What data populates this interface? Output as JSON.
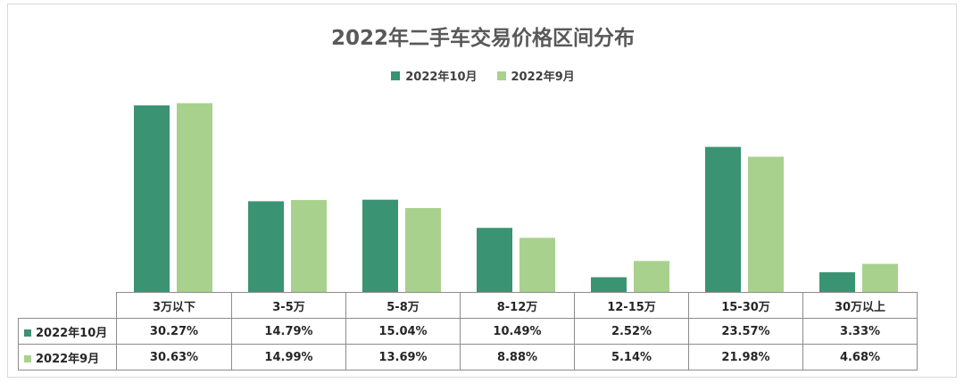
{
  "chart_data": {
    "type": "bar",
    "title": "2022年二手车交易价格区间分布",
    "categories": [
      "3万以下",
      "3-5万",
      "5-8万",
      "8-12万",
      "12-15万",
      "15-30万",
      "30万以上"
    ],
    "series": [
      {
        "name": "2022年10月",
        "color": "#3a9372",
        "values": [
          30.27,
          14.79,
          15.04,
          10.49,
          2.52,
          23.57,
          3.33
        ],
        "labels": [
          "30.27%",
          "14.79%",
          "15.04%",
          "10.49%",
          "2.52%",
          "23.57%",
          "3.33%"
        ]
      },
      {
        "name": "2022年9月",
        "color": "#a9d18e",
        "values": [
          30.63,
          14.99,
          13.69,
          8.88,
          5.14,
          21.98,
          4.68
        ],
        "labels": [
          "30.63%",
          "14.99%",
          "13.69%",
          "8.88%",
          "5.14%",
          "21.98%",
          "4.68%"
        ]
      }
    ],
    "ylim": [
      0,
      31
    ],
    "legend_position": "top",
    "grid": false,
    "data_table": true
  }
}
